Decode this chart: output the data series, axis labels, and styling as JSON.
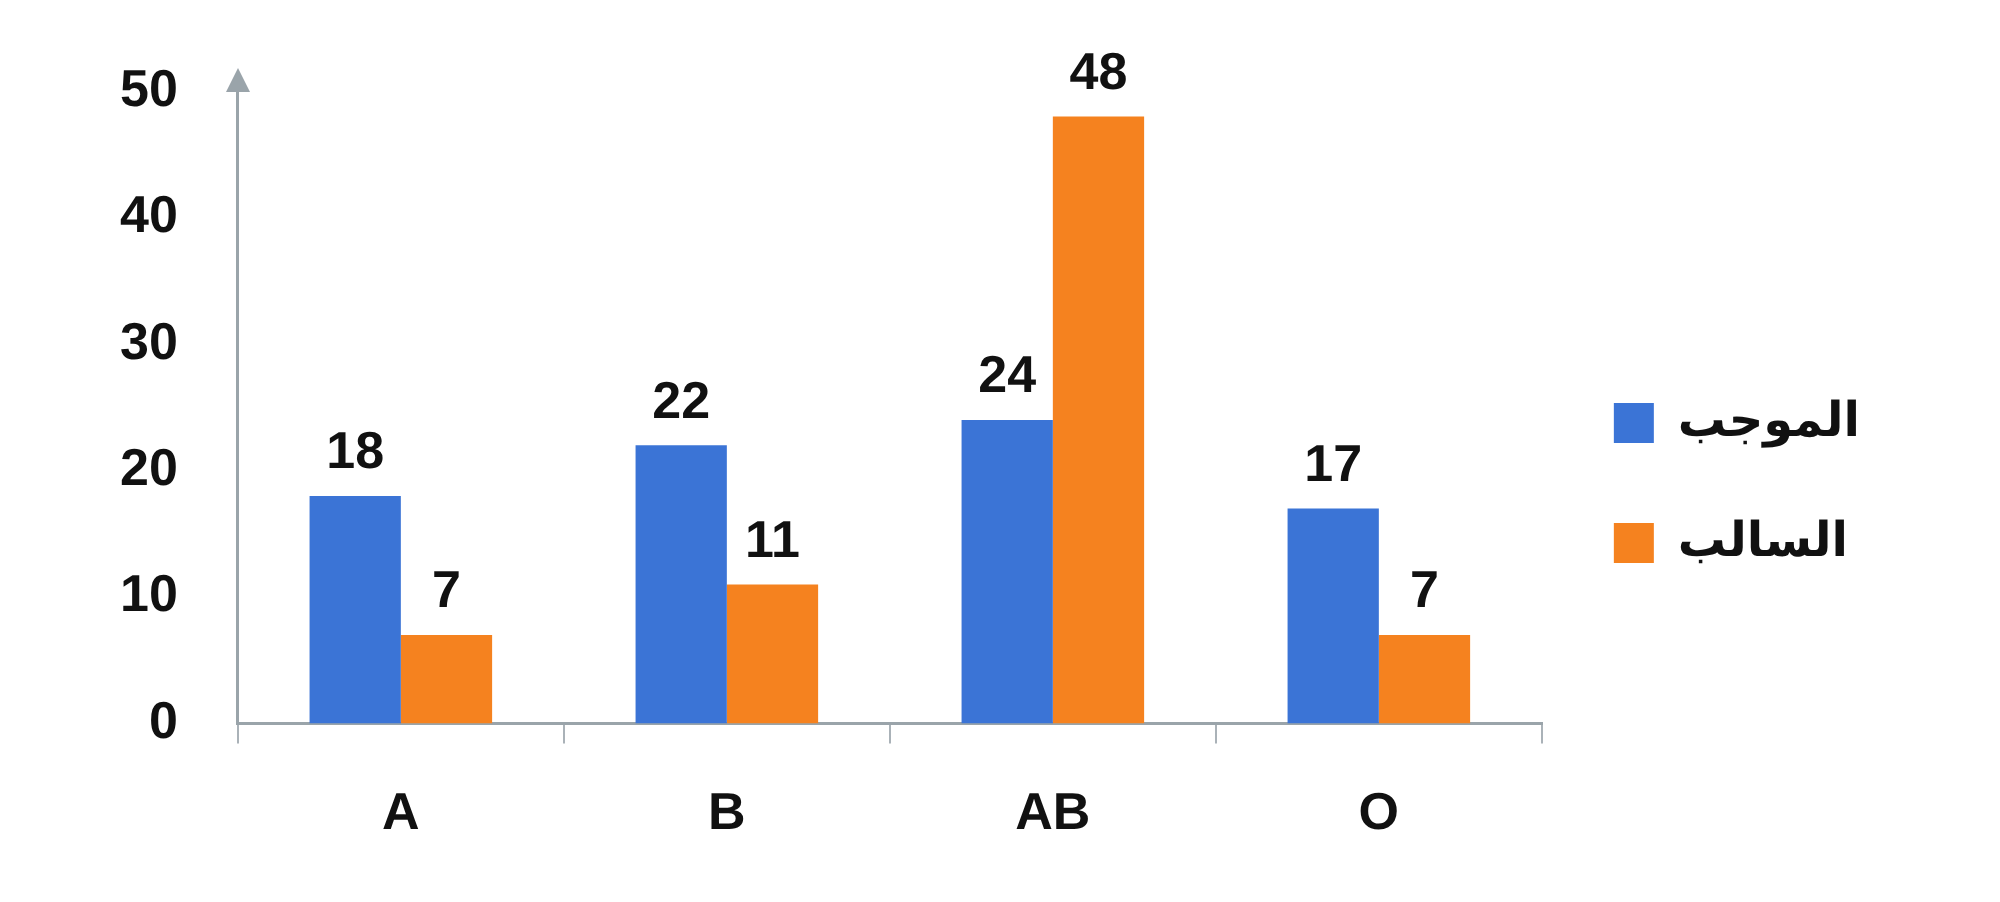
{
  "chart_data": {
    "type": "bar",
    "categories": [
      "A",
      "B",
      "AB",
      "O"
    ],
    "series": [
      {
        "name": "الموجب",
        "color": "#3b74d6",
        "values": [
          18,
          22,
          24,
          17
        ]
      },
      {
        "name": "السالب",
        "color": "#f5821f",
        "values": [
          7,
          11,
          48,
          7
        ]
      }
    ],
    "ylim": [
      0,
      50
    ],
    "yticks": [
      0,
      10,
      20,
      30,
      40,
      50
    ],
    "grid": false,
    "legend": "right",
    "data_labels": true
  }
}
